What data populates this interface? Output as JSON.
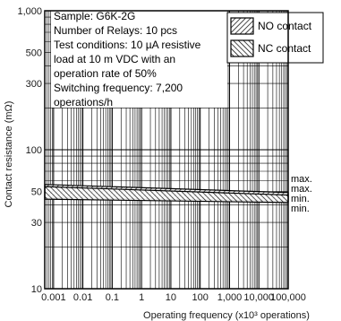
{
  "chart_data": {
    "type": "area",
    "ylabel": "Contact resistance (mΩ)",
    "xlabel": "Operating frequency (x10³ operations)",
    "x_scale": "log",
    "y_scale": "log",
    "xlim": [
      0.0005,
      100000
    ],
    "ylim": [
      10,
      1000
    ],
    "x_ticks": [
      {
        "value": 0.001,
        "label": "0.001"
      },
      {
        "value": 0.01,
        "label": "0.01"
      },
      {
        "value": 0.1,
        "label": "0.1"
      },
      {
        "value": 1,
        "label": "1"
      },
      {
        "value": 10,
        "label": "10"
      },
      {
        "value": 100,
        "label": "100"
      },
      {
        "value": 1000,
        "label": "1,000"
      },
      {
        "value": 10000,
        "label": "10,000"
      },
      {
        "value": 100000,
        "label": "100,000"
      }
    ],
    "y_ticks": [
      {
        "value": 10,
        "label": "10"
      },
      {
        "value": 30,
        "label": "30"
      },
      {
        "value": 50,
        "label": "50"
      },
      {
        "value": 100,
        "label": "100"
      },
      {
        "value": 300,
        "label": "300"
      },
      {
        "value": 500,
        "label": "500"
      },
      {
        "value": 1000,
        "label": "1,000"
      }
    ],
    "series": [
      {
        "name": "NO contact",
        "x": [
          0.001,
          10000
        ],
        "max": [
          56,
          50
        ],
        "min": [
          45,
          43
        ]
      },
      {
        "name": "NC contact",
        "x": [
          0.001,
          10000
        ],
        "max": [
          54,
          48
        ],
        "min": [
          44,
          42
        ]
      }
    ],
    "end_labels": [
      "max.",
      "max.",
      "min.",
      "min."
    ],
    "grid": true,
    "legend_position": "top-right",
    "note_lines": [
      "Sample: G6K-2G",
      "Number of Relays: 10 pcs",
      "Test conditions: 10 µA resistive",
      "load at 10 m VDC with an",
      "operation rate of 50%",
      "Switching frequency: 7,200",
      "operations/h"
    ]
  }
}
